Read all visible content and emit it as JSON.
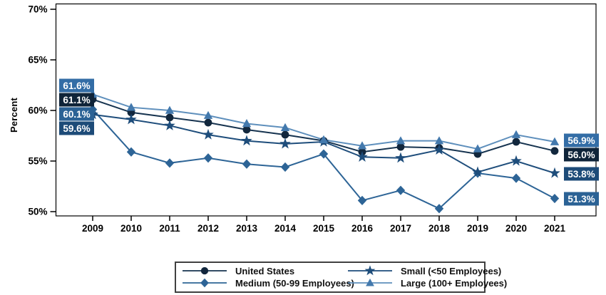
{
  "chart_data": {
    "type": "line",
    "title": "",
    "xlabel": "",
    "ylabel": "Percent",
    "x": [
      "2009",
      "2010",
      "2011",
      "2012",
      "2013",
      "2014",
      "2015",
      "2016",
      "2017",
      "2018",
      "2019",
      "2020",
      "2021"
    ],
    "ylim": [
      49.5,
      70.6
    ],
    "ytick_values": [
      70,
      65,
      60,
      55,
      50
    ],
    "ytick_labels": [
      "70%",
      "65%",
      "60%",
      "55%",
      "50%"
    ],
    "grid": "off",
    "legend_position": "bottom",
    "series": [
      {
        "name": "United States",
        "marker": "circle",
        "color": "#16334f",
        "marker_color": "#12273d",
        "label_bg": "#0f2439",
        "start_label": "61.1%",
        "end_label": "56.0%",
        "values": [
          61.1,
          59.8,
          59.3,
          58.8,
          58.1,
          57.6,
          57.0,
          55.9,
          56.4,
          56.3,
          55.7,
          56.9,
          56.0
        ]
      },
      {
        "name": "Medium (50-99 Employees)",
        "marker": "diamond",
        "color": "#2d6496",
        "marker_color": "#2d6496",
        "label_bg": "#2b6295",
        "start_label": "60.1%",
        "end_label": "51.3%",
        "values": [
          60.1,
          55.9,
          54.8,
          55.3,
          54.7,
          54.4,
          55.7,
          51.1,
          52.1,
          50.3,
          53.8,
          53.3,
          51.3
        ]
      },
      {
        "name": "Small (<50 Employees)",
        "marker": "star",
        "color": "#1e4d7b",
        "marker_color": "#1e4d7b",
        "label_bg": "#1d4b78",
        "start_label": "59.6%",
        "end_label": "53.8%",
        "values": [
          59.6,
          59.1,
          58.5,
          57.6,
          57.0,
          56.7,
          56.9,
          55.4,
          55.3,
          56.1,
          53.9,
          55.0,
          53.8
        ]
      },
      {
        "name": "Large (100+ Employees)",
        "marker": "triangle",
        "color": "#5e8fbc",
        "marker_color": "#4379ad",
        "label_bg": "#336da6",
        "start_label": "61.6%",
        "end_label": "56.9%",
        "values": [
          61.6,
          60.3,
          60.0,
          59.5,
          58.7,
          58.3,
          57.1,
          56.5,
          57.0,
          57.0,
          56.2,
          57.6,
          56.9
        ]
      }
    ]
  }
}
